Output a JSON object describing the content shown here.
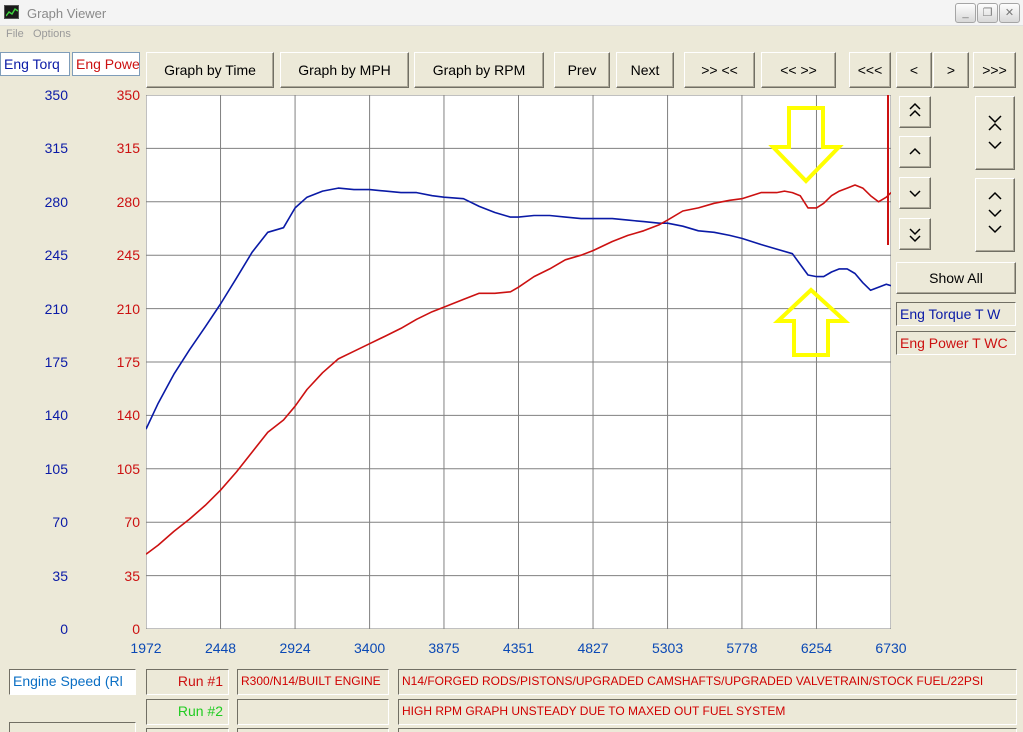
{
  "window": {
    "title": "Graph Viewer"
  },
  "menu": {
    "file": "File",
    "options": "Options"
  },
  "toolbar": {
    "graph_by_time": "Graph by Time",
    "graph_by_mph": "Graph by MPH",
    "graph_by_rpm": "Graph by RPM",
    "prev": "Prev",
    "next": "Next",
    "zoom_in": ">> <<",
    "zoom_out": "<< >>",
    "jump_start": "<<<",
    "step_left": "<",
    "step_right": ">",
    "jump_end": ">>>"
  },
  "axis_headers": {
    "left": "Eng Torq",
    "right": "Eng Powe"
  },
  "side": {
    "show_all": "Show All",
    "legend_torque": "Eng Torque T W",
    "legend_power": "Eng Power T WC"
  },
  "bottom": {
    "engine_speed": "Engine Speed (Rl",
    "run1_label": "Run #1",
    "run2_label": "Run #2",
    "run1_name": "R300/N14/BUILT ENGINE",
    "run2_name": "",
    "run1_desc": "N14/FORGED RODS/PISTONS/UPGRADED CAMSHAFTS/UPGRADED VALVETRAIN/STOCK FUEL/22PSI",
    "run2_desc": "HIGH RPM GRAPH UNSTEADY DUE TO MAXED OUT FUEL SYSTEM"
  },
  "colors": {
    "torque": "#0a1aa6",
    "power": "#cc1111",
    "run1": "#cc1111",
    "run2": "#22cc22",
    "annotation": "#ffff00",
    "grid": "#808080"
  },
  "chart_data": {
    "type": "line",
    "xlim": [
      1972,
      6730
    ],
    "ylim": [
      0,
      350
    ],
    "x_ticks": [
      "1972",
      "2448",
      "2924",
      "3400",
      "3875",
      "4351",
      "4827",
      "5303",
      "5778",
      "6254",
      "6730"
    ],
    "y_ticks": [
      "0",
      "35",
      "70",
      "105",
      "140",
      "175",
      "210",
      "245",
      "280",
      "315",
      "350"
    ],
    "grid": true,
    "series": [
      {
        "name": "Eng Torque T W",
        "color": "#0a1aa6",
        "x": [
          1972,
          2050,
          2150,
          2250,
          2350,
          2448,
          2550,
          2650,
          2750,
          2850,
          2924,
          3000,
          3100,
          3200,
          3300,
          3400,
          3500,
          3600,
          3700,
          3800,
          3875,
          4000,
          4100,
          4200,
          4300,
          4351,
          4450,
          4550,
          4650,
          4750,
          4827,
          4950,
          5050,
          5150,
          5250,
          5303,
          5400,
          5500,
          5600,
          5700,
          5778,
          5900,
          6000,
          6100,
          6150,
          6200,
          6254,
          6300,
          6350,
          6400,
          6450,
          6500,
          6550,
          6600,
          6650,
          6700,
          6730
        ],
        "y": [
          131,
          148,
          167,
          183,
          198,
          213,
          230,
          247,
          260,
          263,
          276,
          283,
          287,
          289,
          288,
          288,
          287,
          286,
          286,
          284,
          283,
          282,
          277,
          273,
          270,
          270,
          271,
          271,
          270,
          269,
          269,
          269,
          268,
          267,
          266,
          266,
          264,
          261,
          260,
          258,
          256,
          252,
          249,
          246,
          239,
          232,
          231,
          231,
          234,
          236,
          236,
          233,
          227,
          222,
          224,
          226,
          225
        ]
      },
      {
        "name": "Eng Power T WC",
        "color": "#cc1111",
        "x": [
          1972,
          2050,
          2150,
          2250,
          2350,
          2448,
          2550,
          2650,
          2750,
          2850,
          2924,
          3000,
          3100,
          3200,
          3300,
          3400,
          3500,
          3600,
          3700,
          3800,
          3875,
          4000,
          4100,
          4200,
          4300,
          4351,
          4450,
          4550,
          4650,
          4750,
          4827,
          4950,
          5050,
          5150,
          5250,
          5303,
          5400,
          5500,
          5600,
          5700,
          5778,
          5900,
          6000,
          6050,
          6100,
          6150,
          6200,
          6254,
          6300,
          6350,
          6400,
          6450,
          6500,
          6550,
          6600,
          6650,
          6700,
          6730
        ],
        "y": [
          49,
          55,
          64,
          72,
          81,
          91,
          103,
          116,
          129,
          137,
          146,
          157,
          168,
          177,
          182,
          187,
          192,
          197,
          203,
          208,
          211,
          216,
          220,
          220,
          221,
          224,
          231,
          236,
          242,
          245,
          248,
          254,
          258,
          261,
          265,
          268,
          274,
          276,
          279,
          281,
          282,
          286,
          286,
          287,
          286,
          284,
          276,
          276,
          279,
          284,
          287,
          289,
          291,
          289,
          284,
          280,
          283,
          286
        ]
      }
    ]
  }
}
